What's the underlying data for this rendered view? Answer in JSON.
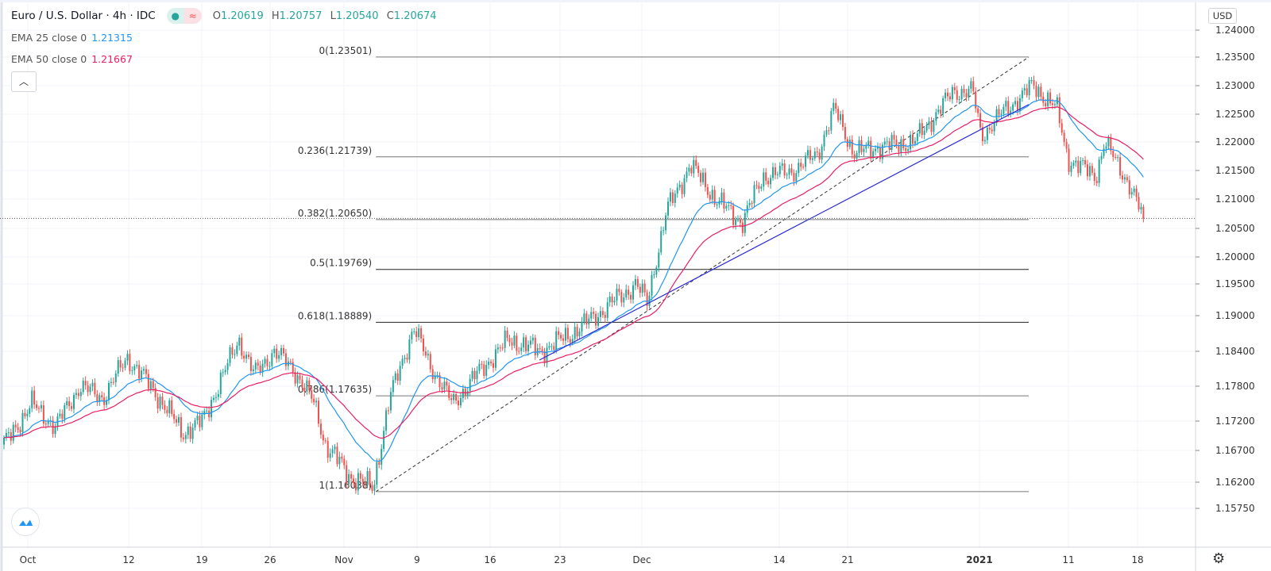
{
  "header": {
    "symbol_title": "Euro / U.S. Dollar · 4h · IDC",
    "ohlc": {
      "o_label": "O",
      "o": "1.20619",
      "h_label": "H",
      "h": "1.20757",
      "l_label": "L",
      "l": "1.20540",
      "c_label": "C",
      "c": "1.20674"
    },
    "ema25_label": "EMA 25 close 0",
    "ema25_value": "1.21315",
    "ema50_label": "EMA 50 close 0",
    "ema50_value": "1.21667",
    "collapse_icon": "chevron-up-icon",
    "currency": "USD"
  },
  "colors": {
    "up": "#26a69a",
    "down": "#ef5350",
    "ema25": "#2196f3",
    "ema50": "#e91e63",
    "trendline": "#2b2bd6",
    "fib": "#555555"
  },
  "chart_data": {
    "type": "candlestick",
    "title": "Euro / U.S. Dollar · 4h · IDC",
    "y_ticks": [
      "1.24000",
      "1.23500",
      "1.23000",
      "1.22500",
      "1.22000",
      "1.21500",
      "1.21000",
      "1.20500",
      "1.20000",
      "1.19500",
      "1.19000",
      "1.18400",
      "1.17800",
      "1.17200",
      "1.16700",
      "1.16200",
      "1.15750"
    ],
    "x_ticks": [
      "Oct",
      "12",
      "19",
      "26",
      "Nov",
      "9",
      "16",
      "23",
      "Dec",
      "14",
      "21",
      "2021",
      "11",
      "18"
    ],
    "close_path_trading_days": [
      [
        0,
        1.168
      ],
      [
        2,
        1.175
      ],
      [
        3.7,
        1.171
      ],
      [
        5.4,
        1.178
      ],
      [
        7.1,
        1.176
      ],
      [
        8.8,
        1.183
      ],
      [
        10.5,
        1.178
      ],
      [
        12.8,
        1.17
      ],
      [
        14.2,
        1.172
      ],
      [
        16.8,
        1.186
      ],
      [
        17.9,
        1.18
      ],
      [
        19.3,
        1.184
      ],
      [
        20.7,
        1.181
      ],
      [
        22.2,
        1.175
      ],
      [
        23,
        1.168
      ],
      [
        24.7,
        1.163
      ],
      [
        26.4,
        1.161
      ],
      [
        27.6,
        1.176
      ],
      [
        29.3,
        1.188
      ],
      [
        30.4,
        1.182
      ],
      [
        32.1,
        1.175
      ],
      [
        33.8,
        1.18
      ],
      [
        36.1,
        1.186
      ],
      [
        38.4,
        1.184
      ],
      [
        40.6,
        1.187
      ],
      [
        42.9,
        1.191
      ],
      [
        45.2,
        1.195
      ],
      [
        46,
        1.192
      ],
      [
        47.4,
        1.208
      ],
      [
        49.1,
        1.216
      ],
      [
        50.9,
        1.21
      ],
      [
        52.8,
        1.206
      ],
      [
        54.3,
        1.214
      ],
      [
        56.5,
        1.215
      ],
      [
        58.2,
        1.218
      ],
      [
        59.4,
        1.226
      ],
      [
        60.8,
        1.218
      ],
      [
        62.2,
        1.219
      ],
      [
        65.1,
        1.22
      ],
      [
        67.9,
        1.229
      ],
      [
        69.3,
        1.229
      ],
      [
        69.9,
        1.221
      ],
      [
        71.3,
        1.225
      ],
      [
        73.6,
        1.23
      ],
      [
        75.3,
        1.226
      ],
      [
        76.1,
        1.217
      ],
      [
        78.1,
        1.214
      ],
      [
        78.7,
        1.22
      ],
      [
        80.4,
        1.213
      ],
      [
        81.5,
        1.2067
      ]
    ],
    "current_price": 1.2067,
    "ema_periods": [
      25,
      50
    ],
    "fib_levels": [
      {
        "label": "0(1.23501)",
        "price": 1.23501
      },
      {
        "label": "0.236(1.21739)",
        "price": 1.21739
      },
      {
        "label": "0.382(1.20650)",
        "price": 1.2065
      },
      {
        "label": "0.5(1.19769)",
        "price": 1.19769
      },
      {
        "label": "0.618(1.18889)",
        "price": 1.18889
      },
      {
        "label": "0.786(1.17635)",
        "price": 1.17635
      },
      {
        "label": "1(1.16038)",
        "price": 1.16038
      }
    ],
    "fib_range": {
      "start_day": 26.6,
      "end_day": 73.3,
      "from_price": 1.16038,
      "to_price": 1.23501
    },
    "trendline": {
      "start_day": 38.3,
      "start_price": 1.1825,
      "end_day": 73.3,
      "end_price": 1.2267
    }
  }
}
